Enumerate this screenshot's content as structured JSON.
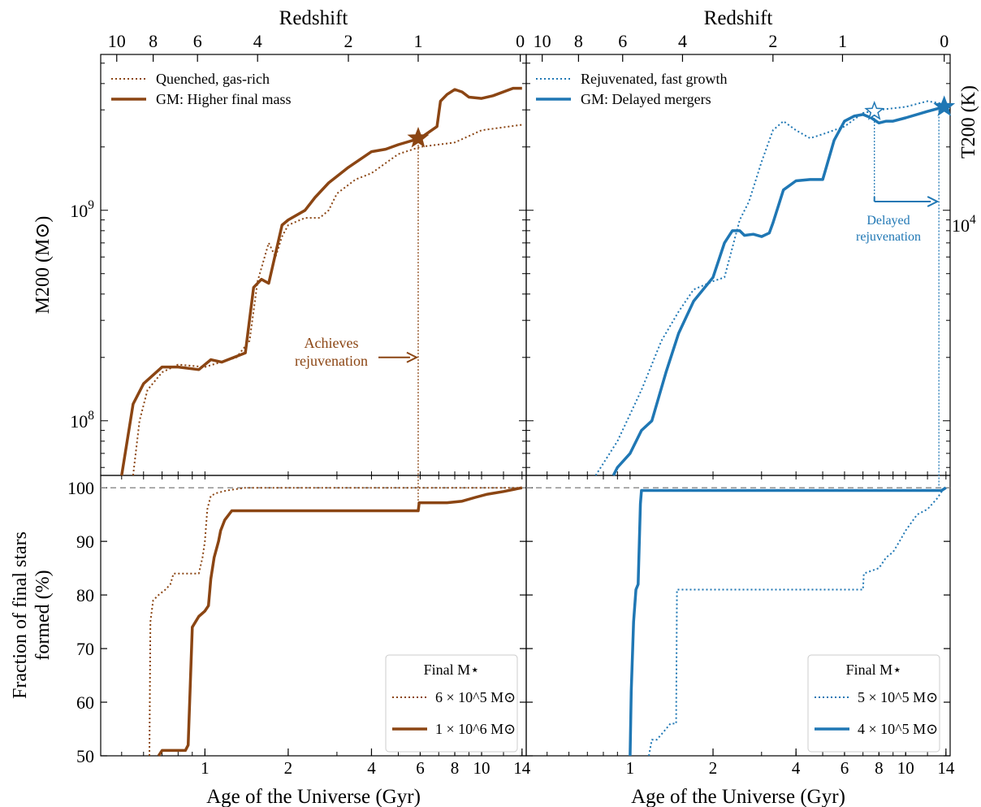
{
  "figure": {
    "top_axis_label": "Redshift",
    "bottom_axis_label": "Age of the Universe (Gyr)",
    "left_top_ylabel": "M200 (M⊙)",
    "left_bottom_ylabel_line1": "Fraction of final stars",
    "left_bottom_ylabel_line2": "formed (%)",
    "right_top_ylabel": "T200 (K)",
    "colors": {
      "brown": "#8B4513",
      "blue": "#1f77b4",
      "ref_line": "#888888"
    }
  },
  "chart_data": [
    {
      "panel": "top-left",
      "type": "line",
      "x_scale": "log",
      "y_scale": "log",
      "xlim": [
        0.42,
        14.5
      ],
      "ylim": [
        55000000,
        5500000000
      ],
      "xlabel": "",
      "ylabel": "M200 (M⊙)",
      "ytick_labels": [
        {
          "value": 100000000,
          "text": "10^8"
        },
        {
          "value": 1000000000,
          "text": "10^9"
        }
      ],
      "top_ticks": [
        {
          "age": 0.48,
          "label": "10"
        },
        {
          "age": 0.65,
          "label": "8"
        },
        {
          "age": 0.94,
          "label": "6"
        },
        {
          "age": 1.55,
          "label": "4"
        },
        {
          "age": 3.3,
          "label": "2"
        },
        {
          "age": 5.9,
          "label": "1"
        },
        {
          "age": 13.8,
          "label": "0"
        }
      ],
      "legend": [
        "Quenched, gas-rich",
        "GM: Higher final mass"
      ],
      "legend_position": "upper-left",
      "annotation": {
        "text_line1": "Achieves",
        "text_line2": "rejuvenation",
        "arrow_to_age": 5.9,
        "at_mass": 200000000
      },
      "vline_age": 5.9,
      "star_marker": {
        "age": 5.9,
        "mass": 2200000000,
        "filled": true
      },
      "series": [
        {
          "name": "Quenched, gas-rich",
          "style": "dotted",
          "x": [
            0.55,
            0.58,
            0.62,
            0.7,
            0.8,
            1.0,
            1.3,
            1.45,
            1.55,
            1.7,
            1.8,
            1.9,
            2.0,
            2.3,
            2.6,
            2.8,
            3.0,
            3.5,
            4.0,
            5.0,
            6.0,
            8.0,
            10.0,
            14.0
          ],
          "y": [
            55000000,
            100000000,
            140000000,
            170000000,
            185000000,
            180000000,
            200000000,
            240000000,
            460000000,
            700000000,
            600000000,
            750000000,
            850000000,
            920000000,
            920000000,
            1000000000,
            1200000000,
            1400000000,
            1500000000,
            1850000000,
            2000000000,
            2100000000,
            2400000000,
            2550000000
          ]
        },
        {
          "name": "GM: Higher final mass",
          "style": "solid",
          "x": [
            0.5,
            0.55,
            0.6,
            0.7,
            0.8,
            0.95,
            1.05,
            1.15,
            1.4,
            1.5,
            1.6,
            1.7,
            1.9,
            2.0,
            2.3,
            2.5,
            2.8,
            3.0,
            3.3,
            4.0,
            4.5,
            5.0,
            6.0,
            6.9,
            7.1,
            7.5,
            8.0,
            8.5,
            9.0,
            10.0,
            11.0,
            13.0,
            14.0
          ],
          "y": [
            55000000,
            120000000,
            150000000,
            180000000,
            180000000,
            175000000,
            195000000,
            190000000,
            210000000,
            430000000,
            470000000,
            450000000,
            850000000,
            900000000,
            1000000000,
            1150000000,
            1350000000,
            1450000000,
            1600000000,
            1900000000,
            1950000000,
            2050000000,
            2200000000,
            2500000000,
            3300000000,
            3550000000,
            3750000000,
            3650000000,
            3450000000,
            3400000000,
            3500000000,
            3800000000,
            3800000000
          ]
        }
      ]
    },
    {
      "panel": "top-right",
      "type": "line",
      "x_scale": "log",
      "y_scale": "log",
      "xlim": [
        0.42,
        14.5
      ],
      "ylim": [
        55000000,
        5500000000
      ],
      "ylabel": "T200 (K)",
      "right_ytick_labels": [
        {
          "value": 850000000,
          "text": "10^4"
        }
      ],
      "top_ticks": [
        {
          "age": 0.48,
          "label": "10"
        },
        {
          "age": 0.65,
          "label": "8"
        },
        {
          "age": 0.94,
          "label": "6"
        },
        {
          "age": 1.55,
          "label": "4"
        },
        {
          "age": 3.3,
          "label": "2"
        },
        {
          "age": 5.9,
          "label": "1"
        },
        {
          "age": 13.8,
          "label": "0"
        }
      ],
      "legend": [
        "Rejuvenated, fast growth",
        "GM: Delayed mergers"
      ],
      "legend_position": "upper-left",
      "annotation": {
        "text_line1": "Delayed",
        "text_line2": "rejuvenation",
        "arrow_from_age": 7.7,
        "arrow_to_age": 13.2
      },
      "vlines_age": [
        7.7,
        13.2
      ],
      "star_markers": [
        {
          "age": 7.7,
          "mass": 2950000000,
          "filled": false
        },
        {
          "age": 13.8,
          "mass": 3100000000,
          "filled": true
        }
      ],
      "series": [
        {
          "name": "Rejuvenated, fast growth",
          "style": "dotted",
          "x": [
            0.75,
            0.9,
            1.1,
            1.3,
            1.5,
            1.7,
            2.0,
            2.2,
            2.5,
            2.7,
            3.0,
            3.3,
            3.6,
            4.0,
            4.5,
            5.0,
            6.0,
            7.0,
            8.0,
            10.0,
            12.0,
            13.8
          ],
          "y": [
            55000000,
            80000000,
            140000000,
            240000000,
            330000000,
            420000000,
            460000000,
            480000000,
            900000000,
            1100000000,
            1700000000,
            2400000000,
            2650000000,
            2400000000,
            2200000000,
            2300000000,
            2500000000,
            2900000000,
            3000000000,
            3100000000,
            3300000000,
            3200000000
          ]
        },
        {
          "name": "GM: Delayed mergers",
          "style": "solid",
          "x": [
            0.87,
            0.9,
            1.0,
            1.1,
            1.2,
            1.35,
            1.5,
            1.7,
            2.0,
            2.2,
            2.35,
            2.5,
            2.6,
            2.8,
            3.0,
            3.2,
            3.3,
            3.6,
            4.0,
            4.5,
            5.0,
            5.5,
            6.0,
            6.5,
            7.0,
            7.5,
            8.0,
            8.5,
            9.0,
            10.0,
            12.0,
            13.8
          ],
          "y": [
            55000000,
            60000000,
            70000000,
            90000000,
            100000000,
            170000000,
            260000000,
            370000000,
            480000000,
            700000000,
            800000000,
            800000000,
            760000000,
            770000000,
            750000000,
            780000000,
            870000000,
            1250000000,
            1380000000,
            1400000000,
            1400000000,
            2150000000,
            2650000000,
            2800000000,
            2850000000,
            2750000000,
            2600000000,
            2650000000,
            2650000000,
            2750000000,
            2950000000,
            3100000000
          ]
        }
      ]
    },
    {
      "panel": "bottom-left",
      "type": "line",
      "x_scale": "log",
      "y_scale": "linear",
      "xlim": [
        0.42,
        14.5
      ],
      "ylim": [
        50,
        102.3
      ],
      "xlabel": "Age of the Universe (Gyr)",
      "xtick_labels": [
        {
          "value": 1,
          "text": "1"
        },
        {
          "value": 2,
          "text": "2"
        },
        {
          "value": 4,
          "text": "4"
        },
        {
          "value": 6,
          "text": "6"
        },
        {
          "value": 8,
          "text": "8"
        },
        {
          "value": 10,
          "text": "10"
        },
        {
          "value": 14,
          "text": "14"
        }
      ],
      "yticks": [
        50,
        60,
        70,
        80,
        90,
        100
      ],
      "ytick_labels": [
        "50",
        "60",
        "70",
        "80",
        "90",
        "100"
      ],
      "hline_y": 100,
      "legend_title": "Final M⋆",
      "legend": [
        "6 × 10^5 M⊙",
        "1 × 10^6 M⊙"
      ],
      "legend_position": "lower-right",
      "series": [
        {
          "name": "6 × 10^5 M⊙",
          "style": "dotted",
          "x": [
            0.63,
            0.635,
            0.65,
            0.68,
            0.72,
            0.75,
            0.77,
            0.95,
            0.98,
            1.0,
            1.02,
            1.05,
            1.1,
            1.2,
            1.4,
            2.0,
            6.0,
            14.0
          ],
          "y": [
            50,
            75,
            79,
            80,
            81,
            82,
            84,
            84,
            87,
            90,
            96,
            98.5,
            99,
            99.5,
            100,
            100,
            100,
            100
          ]
        },
        {
          "name": "1 × 10^6 M⊙",
          "style": "solid",
          "x": [
            0.68,
            0.7,
            0.75,
            0.85,
            0.87,
            0.9,
            0.95,
            1.0,
            1.03,
            1.05,
            1.08,
            1.12,
            1.14,
            1.18,
            1.25,
            1.35,
            3.0,
            5.9,
            5.95,
            7.5,
            8.5,
            9.5,
            10.5,
            12.0,
            14.0
          ],
          "y": [
            50,
            51,
            51,
            51,
            52,
            74,
            76,
            77,
            78,
            83,
            87,
            90,
            92,
            94,
            95.7,
            95.7,
            95.7,
            95.7,
            97.2,
            97.2,
            97.5,
            98.2,
            98.8,
            99.3,
            100
          ]
        }
      ]
    },
    {
      "panel": "bottom-right",
      "type": "line",
      "x_scale": "log",
      "y_scale": "linear",
      "xlim": [
        0.42,
        14.5
      ],
      "ylim": [
        50,
        102.3
      ],
      "xlabel": "Age of the Universe (Gyr)",
      "xtick_labels": [
        {
          "value": 1,
          "text": "1"
        },
        {
          "value": 2,
          "text": "2"
        },
        {
          "value": 4,
          "text": "4"
        },
        {
          "value": 6,
          "text": "6"
        },
        {
          "value": 8,
          "text": "8"
        },
        {
          "value": 10,
          "text": "10"
        },
        {
          "value": 14,
          "text": "14"
        }
      ],
      "hline_y": 100,
      "legend_title": "Final M⋆",
      "legend": [
        "5 × 10^5 M⊙",
        "4 × 10^5 M⊙"
      ],
      "legend_position": "lower-right",
      "series": [
        {
          "name": "5 × 10^5 M⊙",
          "style": "dotted",
          "x": [
            1.17,
            1.2,
            1.25,
            1.3,
            1.35,
            1.4,
            1.47,
            1.48,
            3.0,
            7.0,
            7.05,
            8.0,
            8.5,
            9.0,
            9.5,
            10.0,
            11.0,
            12.0,
            13.0,
            13.8
          ],
          "y": [
            50,
            53,
            53,
            54,
            55,
            56,
            56,
            81,
            81,
            81,
            84,
            85,
            87,
            88,
            90,
            92,
            95,
            96,
            98,
            100
          ]
        },
        {
          "name": "4 × 10^5 M⊙",
          "style": "solid",
          "x": [
            1.0,
            1.01,
            1.03,
            1.05,
            1.07,
            1.09,
            1.1,
            5.0,
            13.5,
            14.0
          ],
          "y": [
            50,
            62,
            75,
            81,
            82,
            97,
            99.5,
            99.5,
            99.5,
            100
          ]
        }
      ]
    }
  ]
}
